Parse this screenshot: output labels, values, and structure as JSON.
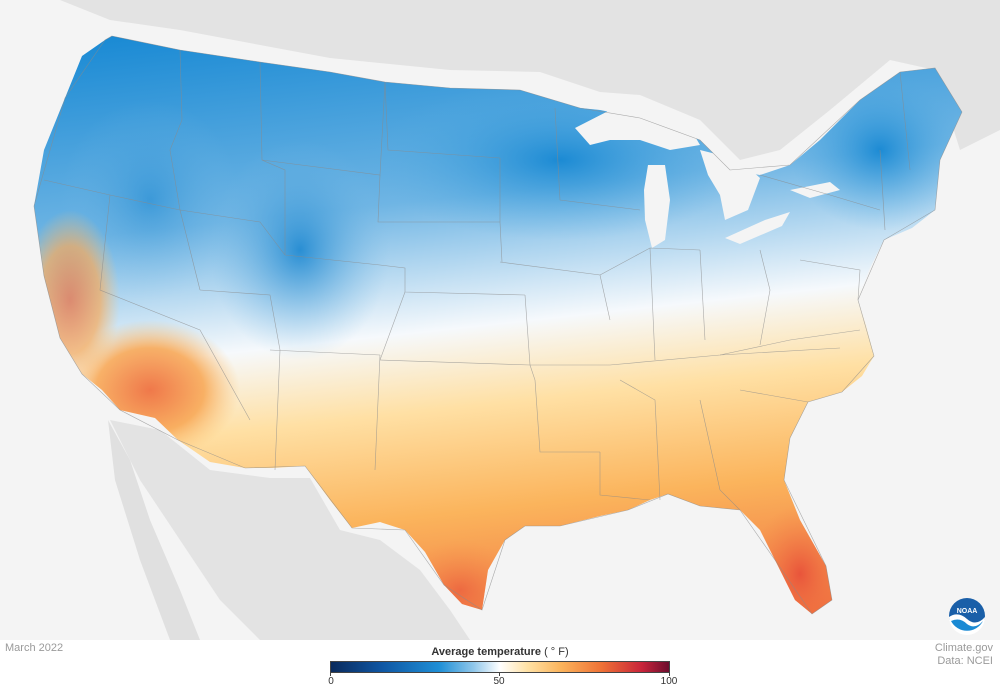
{
  "map": {
    "region": "Contiguous United States",
    "variable": "Average temperature",
    "date": "March 2022",
    "colors": {
      "cold": "#1f8fd6",
      "mild": "#ffffff",
      "warm": "#fbb45c",
      "hot": "#ef5a36",
      "background": "#f4f4f4",
      "land_outside": "#e3e3e3",
      "water": "#ffffff"
    }
  },
  "legend": {
    "title": "Average temperature",
    "unit": "( ° F)",
    "min_label": "0",
    "mid_label": "50",
    "max_label": "100",
    "range": [
      0,
      100
    ]
  },
  "credits": {
    "line1": "Climate.gov",
    "line2": "Data: NCEI"
  },
  "logo": {
    "text": "NOAA",
    "icon": "noaa-logo-icon"
  }
}
